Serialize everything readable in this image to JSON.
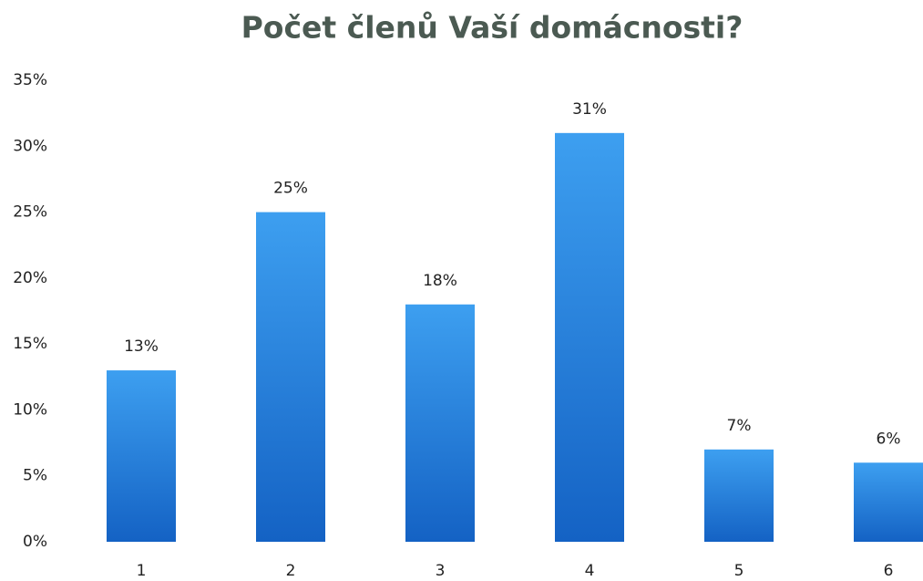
{
  "chart_data": {
    "type": "bar",
    "title": "Počet členů Vaší domácnosti?",
    "categories": [
      "1",
      "2",
      "3",
      "4",
      "5",
      "6"
    ],
    "values": [
      13,
      25,
      18,
      31,
      7,
      6
    ],
    "value_labels": [
      "13%",
      "25%",
      "18%",
      "31%",
      "7%",
      "6%"
    ],
    "color": "#2380de",
    "ylim": [
      0,
      35
    ],
    "yticks": [
      {
        "value": 0,
        "label": "0%"
      },
      {
        "value": 5,
        "label": "5%"
      },
      {
        "value": 10,
        "label": "10%"
      },
      {
        "value": 15,
        "label": "15%"
      },
      {
        "value": 20,
        "label": "20%"
      },
      {
        "value": 25,
        "label": "25%"
      },
      {
        "value": 30,
        "label": "30%"
      },
      {
        "value": 35,
        "label": "35%"
      }
    ],
    "grid": false
  }
}
